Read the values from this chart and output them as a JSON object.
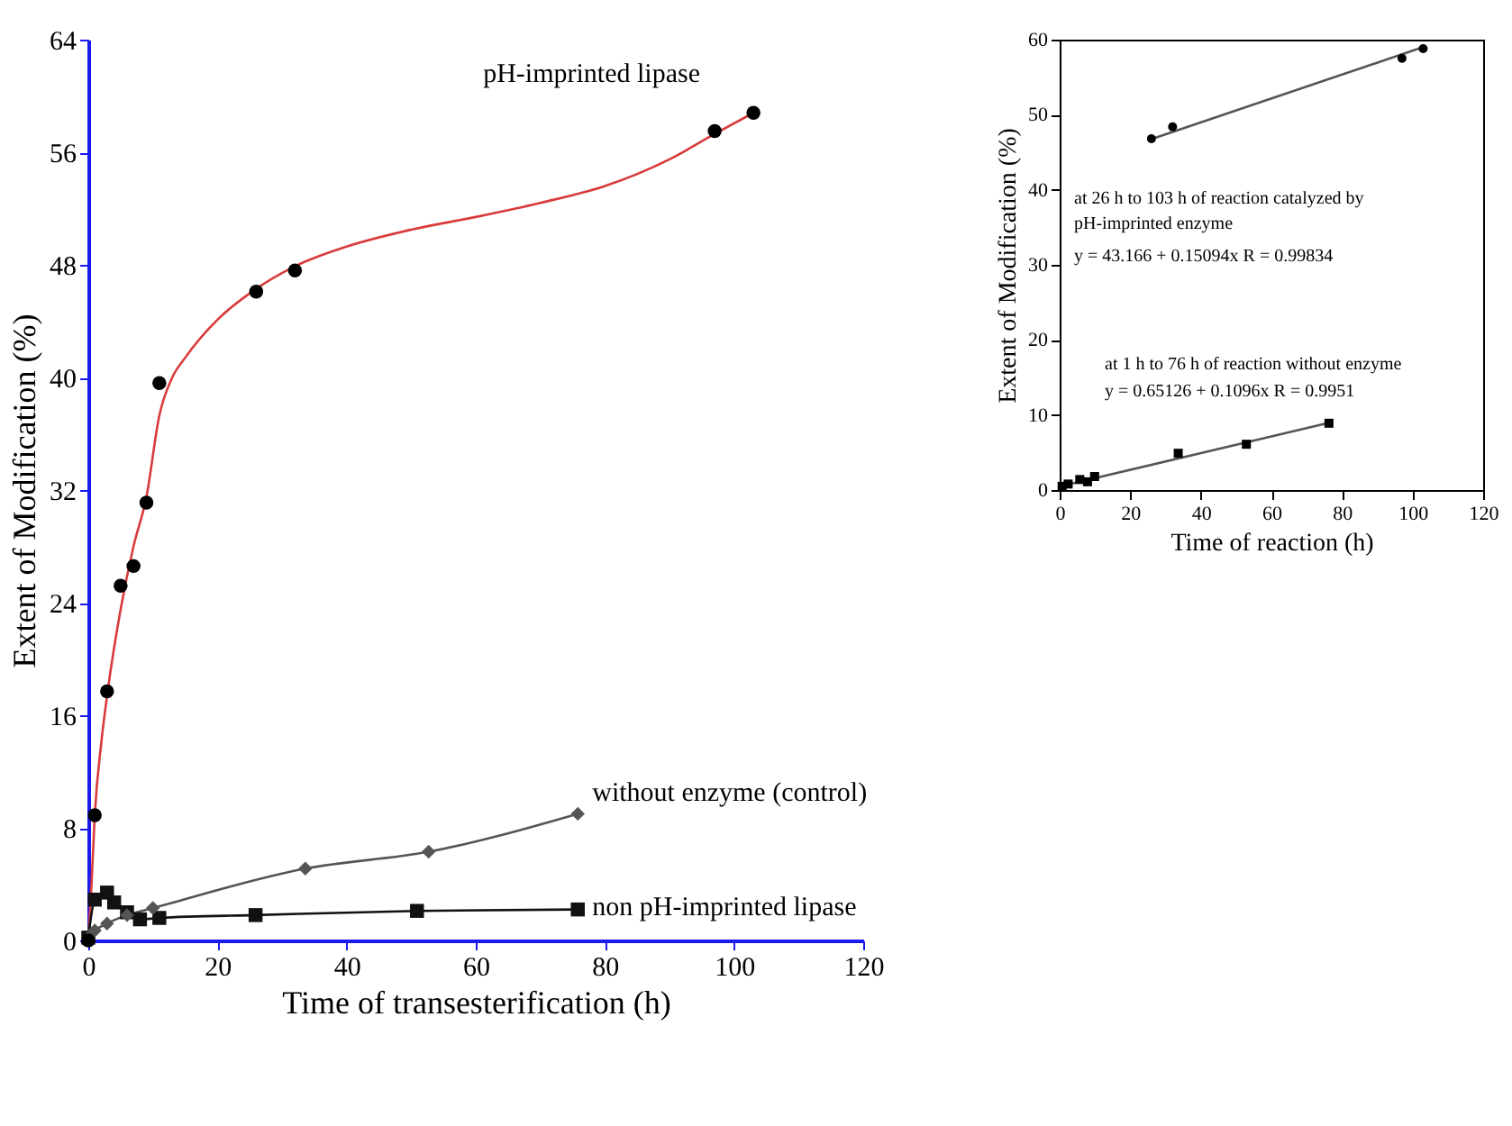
{
  "chart_data": [
    {
      "type": "line",
      "xlabel": "Time of transesterification (h)",
      "ylabel": "Extent of Modification (%)",
      "xlim": [
        0,
        120
      ],
      "xticks": [
        0,
        20,
        40,
        60,
        80,
        100,
        120
      ],
      "ylim": [
        0,
        64
      ],
      "yticks": [
        0,
        8,
        16,
        24,
        32,
        40,
        48,
        56,
        64
      ],
      "series": [
        {
          "name": "pH-imprinted lipase",
          "type": "scatter",
          "marker": "circle",
          "color": "#000000",
          "x": [
            0,
            1,
            2.9,
            5,
            7,
            9,
            11,
            26,
            32,
            97,
            103
          ],
          "values": [
            0,
            8.9,
            17.7,
            25.2,
            26.6,
            31.1,
            39.6,
            46.1,
            47.6,
            57.5,
            58.8
          ]
        },
        {
          "type": "line",
          "marker": "none",
          "color": "#d93a3a",
          "x": [
            0,
            0.5,
            1,
            2,
            3,
            5,
            7,
            9,
            11,
            13,
            15,
            20,
            26,
            32,
            40,
            50,
            60,
            70,
            80,
            90,
            97,
            103
          ],
          "values": [
            0,
            4,
            8.9,
            14,
            17.7,
            23.5,
            28,
            31.5,
            37.3,
            40,
            41.4,
            44.1,
            46.3,
            47.9,
            49.3,
            50.5,
            51.4,
            52.4,
            53.6,
            55.5,
            57.3,
            58.8
          ]
        },
        {
          "name": "without enzyme (control)",
          "marker": "diamond",
          "color": "#555555",
          "x": [
            0,
            1,
            2.9,
            6,
            10,
            33.6,
            52.7,
            75.8
          ],
          "values": [
            0.2,
            0.7,
            1.2,
            1.8,
            2.3,
            5.1,
            6.3,
            9.0
          ]
        },
        {
          "name": "non pH-imprinted lipase",
          "marker": "square",
          "color": "#111111",
          "x": [
            0,
            1,
            2.9,
            4,
            6,
            8,
            11,
            25.9,
            50.9,
            75.8
          ],
          "values": [
            0.2,
            2.9,
            3.4,
            2.7,
            2.0,
            1.5,
            1.6,
            1.8,
            2.1,
            2.2
          ]
        }
      ]
    },
    {
      "type": "scatter",
      "xlabel": "Time of reaction (h)",
      "ylabel": "Extent of Modification (%)",
      "xlim": [
        0,
        120
      ],
      "xticks": [
        0,
        20,
        40,
        60,
        80,
        100,
        120
      ],
      "ylim": [
        0,
        60
      ],
      "yticks": [
        0,
        10,
        20,
        30,
        40,
        50,
        60
      ],
      "annotations": [
        "at 26 h to 103 h of reaction catalyzed by",
        "pH-imprinted enzyme",
        "y = 43.166 + 0.15094x R = 0.99834",
        "at 1 h to 76 h of reaction without enzyme",
        "y = 0.65126 + 0.1096x R = 0.9951"
      ],
      "series": [
        {
          "marker": "circle",
          "color": "#000000",
          "x": [
            26,
            32,
            97,
            103
          ],
          "values": [
            46.8,
            48.4,
            57.5,
            58.8
          ]
        },
        {
          "type": "line",
          "marker": "none",
          "color": "#555555",
          "x": [
            25,
            103
          ],
          "values": [
            46.6,
            59.0
          ]
        },
        {
          "marker": "square",
          "color": "#000000",
          "x": [
            0.7,
            2.4,
            5.7,
            7.9,
            9.9,
            33.6,
            52.9,
            76.3
          ],
          "values": [
            0.5,
            0.8,
            1.4,
            1.1,
            1.8,
            4.9,
            6.1,
            8.9
          ]
        },
        {
          "type": "line",
          "marker": "none",
          "color": "#555555",
          "x": [
            0.3,
            76.7
          ],
          "values": [
            0.5,
            9.0
          ]
        }
      ]
    }
  ]
}
